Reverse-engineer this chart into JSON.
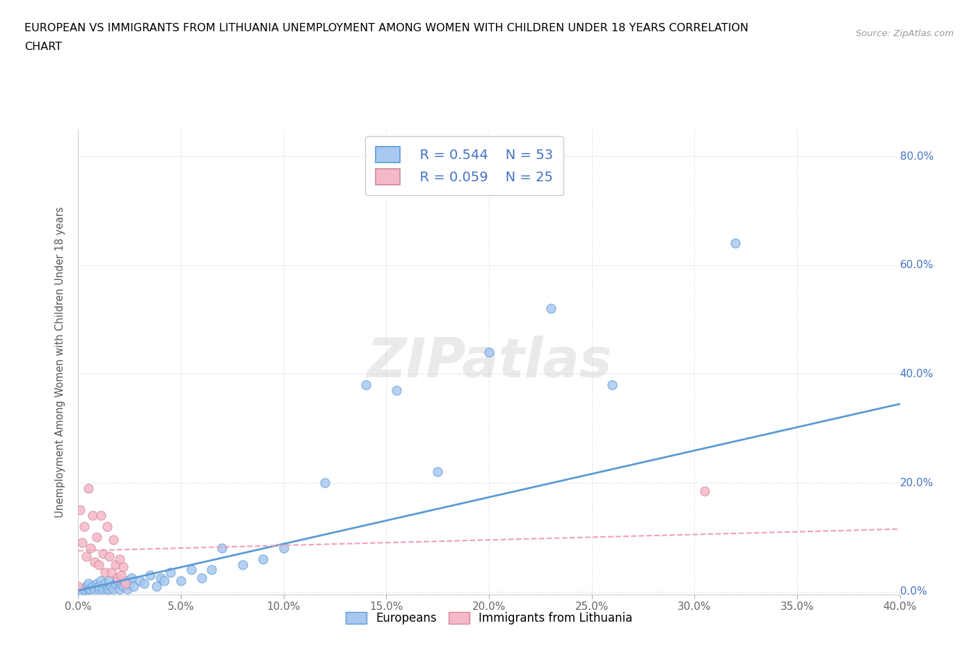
{
  "title_line1": "EUROPEAN VS IMMIGRANTS FROM LITHUANIA UNEMPLOYMENT AMONG WOMEN WITH CHILDREN UNDER 18 YEARS CORRELATION",
  "title_line2": "CHART",
  "source": "Source: ZipAtlas.com",
  "ylabel": "Unemployment Among Women with Children Under 18 years",
  "xlim": [
    0.0,
    0.4
  ],
  "ylim": [
    -0.005,
    0.85
  ],
  "legend_r1": "R = 0.544",
  "legend_n1": "N = 53",
  "legend_r2": "R = 0.059",
  "legend_n2": "N = 25",
  "color_european": "#a8c8f0",
  "color_lithuania": "#f5b8c8",
  "color_line_european": "#5b9bd5",
  "color_line_lithuania": "#f0a0b5",
  "background_color": "#ffffff",
  "grid_color": "#d8e0ec",
  "watermark": "ZIPatlas",
  "european_x": [
    0.0,
    0.002,
    0.003,
    0.004,
    0.005,
    0.005,
    0.006,
    0.007,
    0.008,
    0.009,
    0.01,
    0.01,
    0.011,
    0.012,
    0.013,
    0.014,
    0.015,
    0.015,
    0.016,
    0.017,
    0.018,
    0.019,
    0.02,
    0.021,
    0.022,
    0.023,
    0.024,
    0.025,
    0.026,
    0.027,
    0.03,
    0.032,
    0.035,
    0.038,
    0.04,
    0.042,
    0.045,
    0.05,
    0.055,
    0.06,
    0.065,
    0.07,
    0.08,
    0.09,
    0.1,
    0.12,
    0.14,
    0.155,
    0.175,
    0.2,
    0.23,
    0.26,
    0.32
  ],
  "european_y": [
    0.005,
    0.0,
    0.005,
    0.01,
    0.005,
    0.015,
    0.005,
    0.01,
    0.005,
    0.015,
    0.005,
    0.01,
    0.02,
    0.005,
    0.015,
    0.005,
    0.005,
    0.02,
    0.01,
    0.005,
    0.015,
    0.02,
    0.005,
    0.015,
    0.01,
    0.02,
    0.005,
    0.015,
    0.025,
    0.01,
    0.02,
    0.015,
    0.03,
    0.01,
    0.025,
    0.02,
    0.035,
    0.02,
    0.04,
    0.025,
    0.04,
    0.08,
    0.05,
    0.06,
    0.08,
    0.2,
    0.38,
    0.37,
    0.22,
    0.44,
    0.52,
    0.38,
    0.64
  ],
  "lithuania_x": [
    0.0,
    0.001,
    0.002,
    0.003,
    0.004,
    0.005,
    0.006,
    0.007,
    0.008,
    0.009,
    0.01,
    0.011,
    0.012,
    0.013,
    0.014,
    0.015,
    0.016,
    0.017,
    0.018,
    0.019,
    0.02,
    0.021,
    0.022,
    0.023,
    0.305
  ],
  "lithuania_y": [
    0.01,
    0.15,
    0.09,
    0.12,
    0.065,
    0.19,
    0.08,
    0.14,
    0.055,
    0.1,
    0.05,
    0.14,
    0.07,
    0.035,
    0.12,
    0.065,
    0.035,
    0.095,
    0.05,
    0.025,
    0.06,
    0.03,
    0.045,
    0.015,
    0.185
  ],
  "euro_line_x": [
    0.0,
    0.4
  ],
  "euro_line_y": [
    0.002,
    0.345
  ],
  "lith_line_x": [
    0.0,
    0.4
  ],
  "lith_line_y": [
    0.075,
    0.115
  ]
}
